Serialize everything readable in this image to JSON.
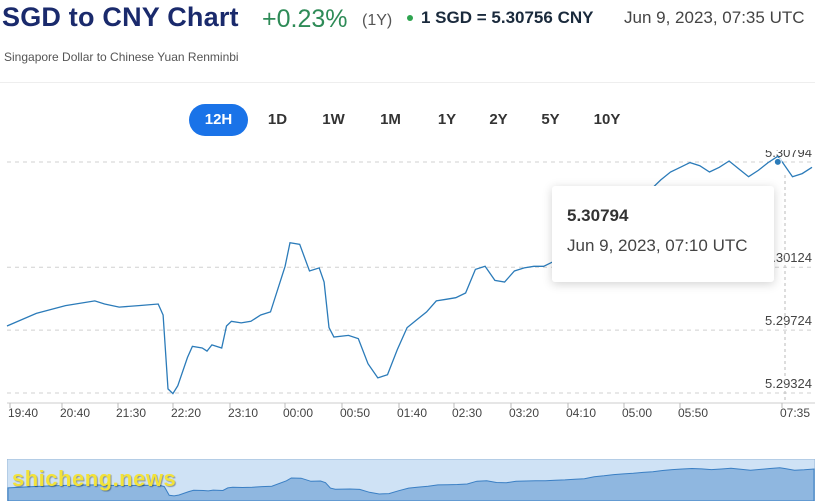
{
  "header": {
    "title": "SGD to CNY Chart",
    "change": "+0.23%",
    "period": "(1Y)",
    "rate": "1 SGD = 5.30756 CNY",
    "timestamp": "Jun 9, 2023, 07:35 UTC",
    "subtitle": "Singapore Dollar to Chinese Yuan Renminbi"
  },
  "tabs": [
    {
      "label": "12H",
      "active": true
    },
    {
      "label": "1D",
      "active": false
    },
    {
      "label": "1W",
      "active": false
    },
    {
      "label": "1M",
      "active": false
    },
    {
      "label": "1Y",
      "active": false
    },
    {
      "label": "2Y",
      "active": false
    },
    {
      "label": "5Y",
      "active": false
    },
    {
      "label": "10Y",
      "active": false
    }
  ],
  "tooltip": {
    "value": "5.30794",
    "time": "Jun 9, 2023, 07:10 UTC"
  },
  "watermark": "shicheng.news",
  "colors": {
    "line": "#2b7bb9",
    "accent": "#1a73e8",
    "positive": "#2e8b57",
    "title": "#1a2a6c"
  },
  "chart_data": {
    "type": "line",
    "y_ticks": [
      "5.30794",
      "5.30124",
      "5.29724",
      "5.29324"
    ],
    "x_ticks": [
      "19:40",
      "20:40",
      "21:30",
      "22:20",
      "23:10",
      "00:00",
      "00:50",
      "01:40",
      "02:30",
      "03:20",
      "04:10",
      "05:00",
      "05:50",
      "07:35"
    ],
    "ylim": [
      5.2926,
      5.3087
    ],
    "series": [
      {
        "values": [
          [
            0,
            5.2975
          ],
          [
            6,
            5.2983
          ],
          [
            12,
            5.2988
          ],
          [
            18,
            5.2991
          ],
          [
            20,
            5.2989
          ],
          [
            23,
            5.2987
          ],
          [
            27,
            5.2988
          ],
          [
            31,
            5.2989
          ],
          [
            32,
            5.2982
          ],
          [
            33,
            5.2935
          ],
          [
            34,
            5.2932
          ],
          [
            35,
            5.2937
          ],
          [
            37,
            5.2955
          ],
          [
            38,
            5.2962
          ],
          [
            40,
            5.2961
          ],
          [
            41,
            5.2959
          ],
          [
            42,
            5.2963
          ],
          [
            44,
            5.2961
          ],
          [
            45,
            5.2975
          ],
          [
            46,
            5.2978
          ],
          [
            48,
            5.2977
          ],
          [
            50,
            5.2978
          ],
          [
            52,
            5.2982
          ],
          [
            54,
            5.2984
          ],
          [
            57,
            5.3013
          ],
          [
            58,
            5.3028
          ],
          [
            60,
            5.3027
          ],
          [
            62,
            5.301
          ],
          [
            64,
            5.3012
          ],
          [
            65,
            5.3003
          ],
          [
            66,
            5.2974
          ],
          [
            67,
            5.2968
          ],
          [
            70,
            5.2969
          ],
          [
            72,
            5.2967
          ],
          [
            74,
            5.2951
          ],
          [
            76,
            5.2942
          ],
          [
            78,
            5.2944
          ],
          [
            80,
            5.296
          ],
          [
            82,
            5.2974
          ],
          [
            84,
            5.2979
          ],
          [
            86,
            5.2984
          ],
          [
            88,
            5.2991
          ],
          [
            90,
            5.2992
          ],
          [
            92,
            5.2993
          ],
          [
            94,
            5.2996
          ],
          [
            96,
            5.3011
          ],
          [
            98,
            5.3013
          ],
          [
            100,
            5.3004
          ],
          [
            102,
            5.3003
          ],
          [
            104,
            5.301
          ],
          [
            106,
            5.3012
          ],
          [
            108,
            5.3013
          ],
          [
            110,
            5.3013
          ],
          [
            112,
            5.3016
          ],
          [
            114,
            5.3018
          ],
          [
            116,
            5.3021
          ],
          [
            118,
            5.3024
          ],
          [
            120,
            5.3035
          ],
          [
            122,
            5.304
          ],
          [
            124,
            5.3046
          ],
          [
            126,
            5.305
          ],
          [
            128,
            5.3053
          ],
          [
            130,
            5.3058
          ],
          [
            132,
            5.3062
          ],
          [
            134,
            5.3068
          ],
          [
            136,
            5.3073
          ],
          [
            138,
            5.3076
          ],
          [
            140,
            5.3079
          ],
          [
            142,
            5.3077
          ],
          [
            144,
            5.3073
          ],
          [
            146,
            5.3076
          ],
          [
            148,
            5.308
          ],
          [
            150,
            5.3075
          ],
          [
            152,
            5.307
          ],
          [
            154,
            5.3074
          ],
          [
            156,
            5.3079
          ],
          [
            158,
            5.3083
          ],
          [
            159,
            5.3079
          ],
          [
            161,
            5.307
          ],
          [
            163,
            5.3072
          ],
          [
            165,
            5.3076
          ]
        ]
      }
    ],
    "x_range": [
      0,
      165
    ],
    "grid": "dashed horizontal"
  }
}
